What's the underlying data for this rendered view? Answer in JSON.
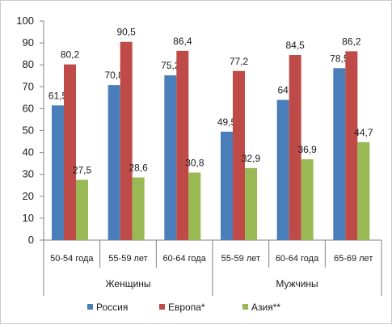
{
  "chart_data": {
    "type": "bar",
    "categories": [
      "50-54 года",
      "55-59 лет",
      "60-64 года",
      "55-59 лет",
      "60-64 года",
      "65-69 лет"
    ],
    "groups": [
      {
        "label": "Женщины",
        "span": 3
      },
      {
        "label": "Мужчины",
        "span": 3
      }
    ],
    "series": [
      {
        "name": "Россия",
        "color": "#4a7ebb",
        "values": [
          61.5,
          70.8,
          75.2,
          49.5,
          64,
          78.5
        ],
        "labels": [
          "61,5",
          "70,8",
          "75,2",
          "49,5",
          "64",
          "78,5"
        ]
      },
      {
        "name": "Европа*",
        "color": "#be4b48",
        "values": [
          80.2,
          90.5,
          86.4,
          77.2,
          84.5,
          86.2
        ],
        "labels": [
          "80,2",
          "90,5",
          "86,4",
          "77,2",
          "84,5",
          "86,2"
        ]
      },
      {
        "name": "Азия**",
        "color": "#98b954",
        "values": [
          27.5,
          28.6,
          30.8,
          32.9,
          36.9,
          44.7
        ],
        "labels": [
          "27,5",
          "28,6",
          "30,8",
          "32,9",
          "36,9",
          "44,7"
        ]
      }
    ],
    "ylim": [
      0,
      100
    ],
    "yticks": [
      0,
      10,
      20,
      30,
      40,
      50,
      60,
      70,
      80,
      90,
      100
    ],
    "grid": false,
    "legend_position": "bottom"
  }
}
